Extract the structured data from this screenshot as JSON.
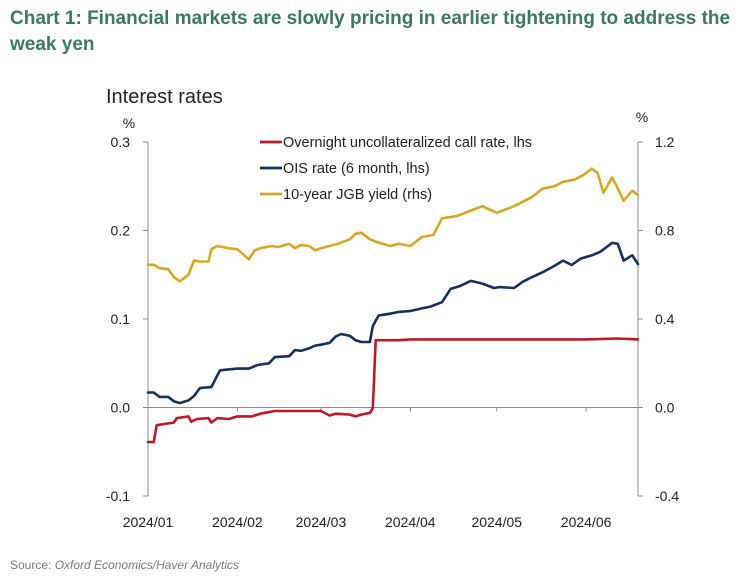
{
  "heading": "Chart 1: Financial markets are slowly pricing in earlier tightening to address the weak yen",
  "source_label": "Source: ",
  "source_value": "Oxford Economics/Haver Analytics",
  "chart_data": {
    "type": "line",
    "title": "Interest rates",
    "left_axis": {
      "unit": "%",
      "ylim": [
        -0.1,
        0.3
      ],
      "ticks": [
        "0.3",
        "0.2",
        "0.1",
        "0.0",
        "-0.1"
      ],
      "tick_values": [
        0.3,
        0.2,
        0.1,
        0.0,
        -0.1
      ]
    },
    "right_axis": {
      "unit": "%",
      "ylim": [
        -0.4,
        1.2
      ],
      "ticks": [
        "1.2",
        "0.8",
        "0.4",
        "0.0",
        "-0.4"
      ],
      "tick_values": [
        1.2,
        0.8,
        0.4,
        0.0,
        -0.4
      ]
    },
    "x_axis": {
      "range": [
        "2024-01-01",
        "2024-06-19"
      ],
      "labels": [
        "2024/01",
        "2024/02",
        "2024/03",
        "2024/04",
        "2024/05",
        "2024/06"
      ],
      "label_dates": [
        "2024-01-01",
        "2024-02-01",
        "2024-03-01",
        "2024-04-01",
        "2024-05-01",
        "2024-06-01"
      ]
    },
    "grid": false,
    "legend_position": "top-left",
    "series": [
      {
        "name": "Overnight uncollateralized call rate, lhs",
        "axis": "left",
        "color": "#c0182a",
        "points": [
          [
            "2024-01-01",
            -0.039
          ],
          [
            "2024-01-03",
            -0.039
          ],
          [
            "2024-01-04",
            -0.02
          ],
          [
            "2024-01-08",
            -0.018
          ],
          [
            "2024-01-10",
            -0.017
          ],
          [
            "2024-01-11",
            -0.012
          ],
          [
            "2024-01-15",
            -0.01
          ],
          [
            "2024-01-16",
            -0.016
          ],
          [
            "2024-01-18",
            -0.013
          ],
          [
            "2024-01-22",
            -0.012
          ],
          [
            "2024-01-23",
            -0.017
          ],
          [
            "2024-01-25",
            -0.012
          ],
          [
            "2024-01-29",
            -0.013
          ],
          [
            "2024-02-01",
            -0.01
          ],
          [
            "2024-02-06",
            -0.01
          ],
          [
            "2024-02-09",
            -0.007
          ],
          [
            "2024-02-14",
            -0.004
          ],
          [
            "2024-02-20",
            -0.004
          ],
          [
            "2024-03-01",
            -0.004
          ],
          [
            "2024-03-04",
            -0.009
          ],
          [
            "2024-03-06",
            -0.007
          ],
          [
            "2024-03-11",
            -0.008
          ],
          [
            "2024-03-13",
            -0.01
          ],
          [
            "2024-03-15",
            -0.008
          ],
          [
            "2024-03-18",
            -0.006
          ],
          [
            "2024-03-19",
            -0.001
          ],
          [
            "2024-03-20",
            0.076
          ],
          [
            "2024-03-25",
            0.076
          ],
          [
            "2024-03-28",
            0.076
          ],
          [
            "2024-04-01",
            0.077
          ],
          [
            "2024-05-01",
            0.077
          ],
          [
            "2024-06-01",
            0.077
          ],
          [
            "2024-06-12",
            0.078
          ],
          [
            "2024-06-19",
            0.077
          ]
        ]
      },
      {
        "name": "OIS rate (6 month, lhs)",
        "axis": "left",
        "color": "#17305e",
        "points": [
          [
            "2024-01-01",
            0.017
          ],
          [
            "2024-01-03",
            0.017
          ],
          [
            "2024-01-05",
            0.012
          ],
          [
            "2024-01-08",
            0.012
          ],
          [
            "2024-01-10",
            0.007
          ],
          [
            "2024-01-12",
            0.005
          ],
          [
            "2024-01-15",
            0.008
          ],
          [
            "2024-01-17",
            0.013
          ],
          [
            "2024-01-19",
            0.022
          ],
          [
            "2024-01-23",
            0.023
          ],
          [
            "2024-01-25",
            0.036
          ],
          [
            "2024-01-26",
            0.042
          ],
          [
            "2024-01-29",
            0.043
          ],
          [
            "2024-02-01",
            0.044
          ],
          [
            "2024-02-05",
            0.044
          ],
          [
            "2024-02-08",
            0.048
          ],
          [
            "2024-02-12",
            0.05
          ],
          [
            "2024-02-14",
            0.057
          ],
          [
            "2024-02-19",
            0.058
          ],
          [
            "2024-02-21",
            0.065
          ],
          [
            "2024-02-23",
            0.064
          ],
          [
            "2024-02-26",
            0.067
          ],
          [
            "2024-02-28",
            0.07
          ],
          [
            "2024-03-01",
            0.071
          ],
          [
            "2024-03-04",
            0.073
          ],
          [
            "2024-03-06",
            0.08
          ],
          [
            "2024-03-08",
            0.083
          ],
          [
            "2024-03-11",
            0.081
          ],
          [
            "2024-03-13",
            0.076
          ],
          [
            "2024-03-15",
            0.074
          ],
          [
            "2024-03-18",
            0.074
          ],
          [
            "2024-03-19",
            0.092
          ],
          [
            "2024-03-21",
            0.104
          ],
          [
            "2024-03-25",
            0.106
          ],
          [
            "2024-03-28",
            0.108
          ],
          [
            "2024-04-01",
            0.109
          ],
          [
            "2024-04-05",
            0.112
          ],
          [
            "2024-04-08",
            0.114
          ],
          [
            "2024-04-12",
            0.119
          ],
          [
            "2024-04-15",
            0.134
          ],
          [
            "2024-04-18",
            0.137
          ],
          [
            "2024-04-22",
            0.143
          ],
          [
            "2024-04-26",
            0.14
          ],
          [
            "2024-04-30",
            0.135
          ],
          [
            "2024-05-02",
            0.136
          ],
          [
            "2024-05-07",
            0.135
          ],
          [
            "2024-05-10",
            0.142
          ],
          [
            "2024-05-13",
            0.147
          ],
          [
            "2024-05-17",
            0.153
          ],
          [
            "2024-05-21",
            0.16
          ],
          [
            "2024-05-24",
            0.166
          ],
          [
            "2024-05-27",
            0.161
          ],
          [
            "2024-05-30",
            0.168
          ],
          [
            "2024-06-03",
            0.172
          ],
          [
            "2024-06-06",
            0.176
          ],
          [
            "2024-06-10",
            0.186
          ],
          [
            "2024-06-12",
            0.185
          ],
          [
            "2024-06-14",
            0.166
          ],
          [
            "2024-06-17",
            0.172
          ],
          [
            "2024-06-19",
            0.162
          ]
        ]
      },
      {
        "name": "10-year JGB yield (rhs)",
        "axis": "right",
        "color": "#d9a820",
        "points": [
          [
            "2024-01-01",
            0.645
          ],
          [
            "2024-01-03",
            0.645
          ],
          [
            "2024-01-05",
            0.63
          ],
          [
            "2024-01-08",
            0.625
          ],
          [
            "2024-01-10",
            0.59
          ],
          [
            "2024-01-12",
            0.57
          ],
          [
            "2024-01-15",
            0.6
          ],
          [
            "2024-01-17",
            0.665
          ],
          [
            "2024-01-19",
            0.66
          ],
          [
            "2024-01-22",
            0.66
          ],
          [
            "2024-01-23",
            0.715
          ],
          [
            "2024-01-25",
            0.73
          ],
          [
            "2024-01-29",
            0.72
          ],
          [
            "2024-02-01",
            0.715
          ],
          [
            "2024-02-05",
            0.67
          ],
          [
            "2024-02-07",
            0.71
          ],
          [
            "2024-02-09",
            0.72
          ],
          [
            "2024-02-13",
            0.73
          ],
          [
            "2024-02-15",
            0.725
          ],
          [
            "2024-02-19",
            0.74
          ],
          [
            "2024-02-21",
            0.72
          ],
          [
            "2024-02-23",
            0.735
          ],
          [
            "2024-02-26",
            0.73
          ],
          [
            "2024-02-28",
            0.71
          ],
          [
            "2024-03-01",
            0.72
          ],
          [
            "2024-03-04",
            0.73
          ],
          [
            "2024-03-07",
            0.74
          ],
          [
            "2024-03-11",
            0.76
          ],
          [
            "2024-03-13",
            0.785
          ],
          [
            "2024-03-15",
            0.79
          ],
          [
            "2024-03-18",
            0.76
          ],
          [
            "2024-03-20",
            0.75
          ],
          [
            "2024-03-25",
            0.73
          ],
          [
            "2024-03-28",
            0.74
          ],
          [
            "2024-04-01",
            0.73
          ],
          [
            "2024-04-05",
            0.77
          ],
          [
            "2024-04-09",
            0.78
          ],
          [
            "2024-04-12",
            0.855
          ],
          [
            "2024-04-17",
            0.865
          ],
          [
            "2024-04-22",
            0.89
          ],
          [
            "2024-04-26",
            0.91
          ],
          [
            "2024-05-01",
            0.88
          ],
          [
            "2024-05-07",
            0.91
          ],
          [
            "2024-05-13",
            0.95
          ],
          [
            "2024-05-17",
            0.99
          ],
          [
            "2024-05-21",
            1.0
          ],
          [
            "2024-05-24",
            1.02
          ],
          [
            "2024-05-28",
            1.03
          ],
          [
            "2024-05-31",
            1.05
          ],
          [
            "2024-06-03",
            1.08
          ],
          [
            "2024-06-05",
            1.06
          ],
          [
            "2024-06-07",
            0.97
          ],
          [
            "2024-06-10",
            1.04
          ],
          [
            "2024-06-12",
            0.99
          ],
          [
            "2024-06-14",
            0.935
          ],
          [
            "2024-06-17",
            0.98
          ],
          [
            "2024-06-19",
            0.96
          ]
        ]
      }
    ]
  }
}
